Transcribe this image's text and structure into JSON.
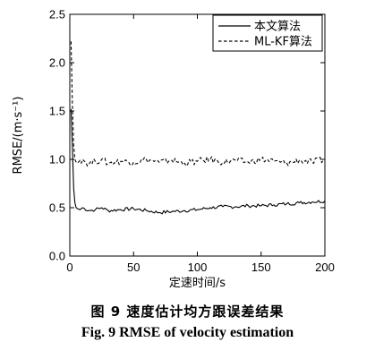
{
  "caption": {
    "cn": "图 9    速度估计均方跟误差结果",
    "en": "Fig. 9    RMSE of velocity estimation"
  },
  "chart_data": {
    "type": "line",
    "xlabel": "定速时间/s",
    "ylabel": "RMSE/(m·s⁻¹)",
    "xlim": [
      0,
      200
    ],
    "ylim": [
      0,
      2.5
    ],
    "xticks": [
      0,
      50,
      100,
      150,
      200
    ],
    "yticks": [
      0.0,
      0.5,
      1.0,
      1.5,
      2.0,
      2.5
    ],
    "ytick_labels": [
      "0.0",
      "0.5",
      "1.0",
      "1.5",
      "2.0",
      "2.5"
    ],
    "grid": false,
    "legend_position": "top-right",
    "series": [
      {
        "name": "本文算法",
        "style": "solid",
        "color": "#000000",
        "x": [
          1,
          2,
          3,
          4,
          5,
          6,
          8,
          10,
          15,
          20,
          25,
          30,
          40,
          50,
          60,
          70,
          80,
          90,
          100,
          110,
          120,
          130,
          140,
          150,
          160,
          170,
          180,
          190,
          200
        ],
        "y": [
          1.52,
          1.15,
          0.7,
          0.55,
          0.5,
          0.49,
          0.48,
          0.5,
          0.47,
          0.48,
          0.5,
          0.47,
          0.48,
          0.49,
          0.47,
          0.45,
          0.46,
          0.47,
          0.48,
          0.5,
          0.51,
          0.51,
          0.52,
          0.52,
          0.53,
          0.54,
          0.55,
          0.56,
          0.57
        ]
      },
      {
        "name": "ML-KF算法",
        "style": "dashed",
        "color": "#000000",
        "x": [
          1,
          2,
          3,
          4,
          5,
          6,
          8,
          10,
          15,
          20,
          25,
          30,
          40,
          50,
          60,
          70,
          80,
          90,
          100,
          110,
          120,
          130,
          140,
          150,
          160,
          170,
          180,
          190,
          200
        ],
        "y": [
          2.22,
          1.6,
          1.15,
          1.0,
          0.97,
          0.96,
          0.99,
          1.0,
          0.95,
          0.98,
          1.0,
          0.96,
          0.98,
          0.97,
          1.0,
          0.97,
          0.99,
          0.96,
          0.98,
          1.0,
          0.97,
          0.99,
          0.97,
          1.0,
          0.98,
          0.96,
          0.99,
          0.97,
          1.0
        ]
      }
    ]
  }
}
